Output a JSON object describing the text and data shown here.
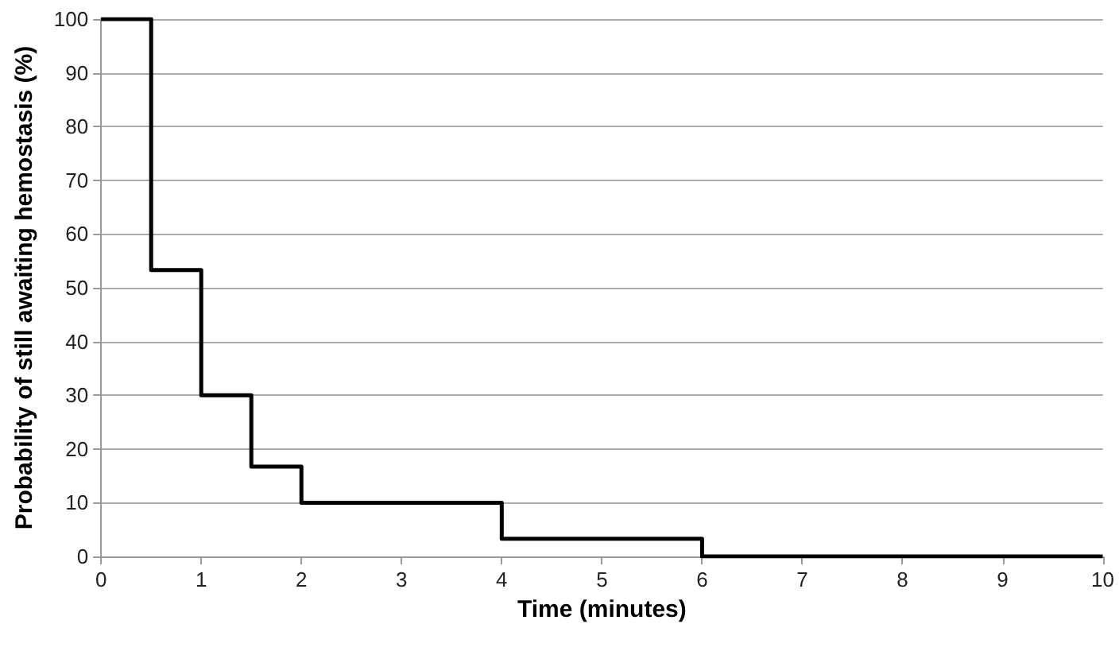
{
  "chart_data": {
    "type": "step",
    "xlabel": "Time (minutes)",
    "ylabel": "Probability of still awaiting hemostasis (%)",
    "x": [
      0,
      0.5,
      1,
      1.5,
      2,
      4,
      6,
      10
    ],
    "series": [
      {
        "color": "#000000",
        "values": [
          100,
          53.3,
          30,
          16.7,
          10,
          3.3,
          0,
          0
        ]
      }
    ],
    "xlim": [
      0,
      10
    ],
    "xticks": [
      0,
      1,
      2,
      3,
      4,
      5,
      6,
      7,
      8,
      9,
      10
    ],
    "ylim": [
      0,
      100
    ],
    "yticks": [
      0,
      10,
      20,
      30,
      40,
      50,
      60,
      70,
      80,
      90,
      100
    ],
    "grid": "y",
    "marker": "none",
    "line_style": "solid"
  }
}
